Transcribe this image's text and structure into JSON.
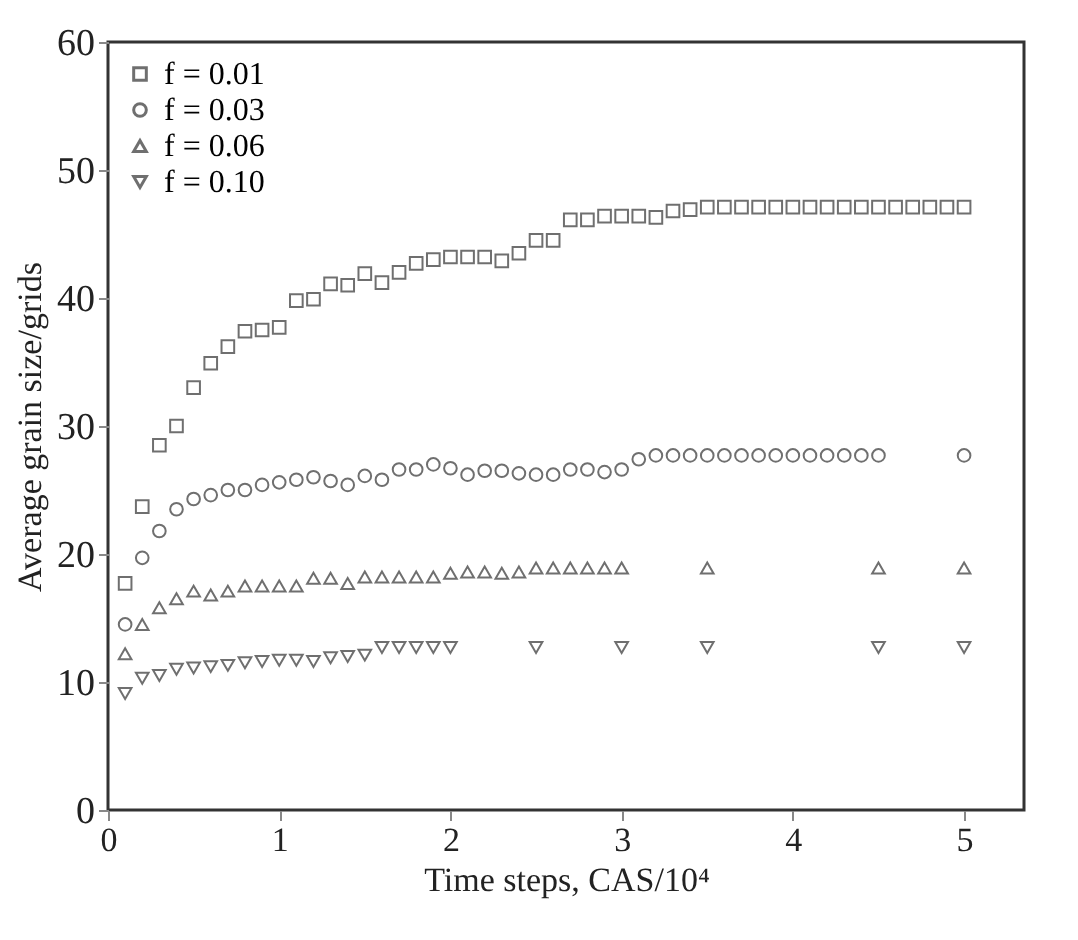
{
  "chart_data": {
    "type": "scatter",
    "xlabel": "Time steps, CAS/10⁴",
    "ylabel": "Average grain size/grids",
    "xlim": [
      0,
      5.35
    ],
    "ylim": [
      0,
      60
    ],
    "xticks": [
      0,
      1,
      2,
      3,
      4,
      5
    ],
    "yticks": [
      0,
      10,
      20,
      30,
      40,
      50,
      60
    ],
    "legend": "top left",
    "grid": false,
    "series": [
      {
        "name": "f = 0.01",
        "color": "#333333",
        "marker": "square",
        "x": [
          0.1,
          0.2,
          0.3,
          0.4,
          0.5,
          0.6,
          0.7,
          0.8,
          0.9,
          1.0,
          1.1,
          1.2,
          1.3,
          1.4,
          1.5,
          1.6,
          1.7,
          1.8,
          1.9,
          2.0,
          2.1,
          2.2,
          2.3,
          2.4,
          2.5,
          2.6,
          2.7,
          2.8,
          2.9,
          3.0,
          3.1,
          3.2,
          3.3,
          3.4,
          3.5,
          3.6,
          3.7,
          3.8,
          3.9,
          4.0,
          4.1,
          4.2,
          4.3,
          4.4,
          4.5,
          4.6,
          4.7,
          4.8,
          4.9,
          5.0
        ],
        "values": [
          17.7,
          23.7,
          28.5,
          30.0,
          33.0,
          34.9,
          36.2,
          37.4,
          37.5,
          37.7,
          39.8,
          39.9,
          41.1,
          41.0,
          41.9,
          41.2,
          42.0,
          42.7,
          43.0,
          43.2,
          43.2,
          43.2,
          42.9,
          43.5,
          44.5,
          44.5,
          46.1,
          46.1,
          46.4,
          46.4,
          46.4,
          46.3,
          46.8,
          46.9,
          47.1,
          47.1,
          47.1,
          47.1,
          47.1,
          47.1,
          47.1,
          47.1,
          47.1,
          47.1,
          47.1,
          47.1,
          47.1,
          47.1,
          47.1,
          47.1
        ]
      },
      {
        "name": "f = 0.03",
        "color": "#333333",
        "marker": "circle",
        "x": [
          0.1,
          0.2,
          0.3,
          0.4,
          0.5,
          0.6,
          0.7,
          0.8,
          0.9,
          1.0,
          1.1,
          1.2,
          1.3,
          1.4,
          1.5,
          1.6,
          1.7,
          1.8,
          1.9,
          2.0,
          2.1,
          2.2,
          2.3,
          2.4,
          2.5,
          2.6,
          2.7,
          2.8,
          2.9,
          3.0,
          3.1,
          3.2,
          3.3,
          3.4,
          3.5,
          3.6,
          3.7,
          3.8,
          3.9,
          4.0,
          4.1,
          4.2,
          4.3,
          4.4,
          4.5,
          5.0
        ],
        "values": [
          14.5,
          19.7,
          21.8,
          23.5,
          24.3,
          24.6,
          25.0,
          25.0,
          25.4,
          25.6,
          25.8,
          26.0,
          25.7,
          25.4,
          26.1,
          25.8,
          26.6,
          26.6,
          27.0,
          26.7,
          26.2,
          26.5,
          26.5,
          26.3,
          26.2,
          26.2,
          26.6,
          26.6,
          26.4,
          26.6,
          27.4,
          27.7,
          27.7,
          27.7,
          27.7,
          27.7,
          27.7,
          27.7,
          27.7,
          27.7,
          27.7,
          27.7,
          27.7,
          27.7,
          27.7,
          27.7
        ]
      },
      {
        "name": "f = 0.06",
        "color": "#333333",
        "marker": "triangle",
        "x": [
          0.1,
          0.2,
          0.3,
          0.4,
          0.5,
          0.6,
          0.7,
          0.8,
          0.9,
          1.0,
          1.1,
          1.2,
          1.3,
          1.4,
          1.5,
          1.6,
          1.7,
          1.8,
          1.9,
          2.0,
          2.1,
          2.2,
          2.3,
          2.4,
          2.5,
          2.6,
          2.7,
          2.8,
          2.9,
          3.0,
          3.5,
          4.5,
          5.0
        ],
        "values": [
          12.2,
          14.5,
          15.8,
          16.5,
          17.1,
          16.8,
          17.1,
          17.5,
          17.5,
          17.5,
          17.5,
          18.1,
          18.1,
          17.7,
          18.2,
          18.2,
          18.2,
          18.2,
          18.2,
          18.5,
          18.6,
          18.6,
          18.5,
          18.6,
          18.9,
          18.9,
          18.9,
          18.9,
          18.9,
          18.9,
          18.9,
          18.9,
          18.9
        ]
      },
      {
        "name": "f = 0.10",
        "color": "#333333",
        "marker": "triangle-down",
        "x": [
          0.1,
          0.2,
          0.3,
          0.4,
          0.5,
          0.6,
          0.7,
          0.8,
          0.9,
          1.0,
          1.1,
          1.2,
          1.3,
          1.4,
          1.5,
          1.6,
          1.7,
          1.8,
          1.9,
          2.0,
          2.5,
          3.0,
          3.5,
          4.5,
          5.0
        ],
        "values": [
          9.1,
          10.3,
          10.5,
          11.0,
          11.1,
          11.2,
          11.3,
          11.5,
          11.6,
          11.7,
          11.7,
          11.6,
          11.9,
          12.0,
          12.1,
          12.7,
          12.7,
          12.7,
          12.7,
          12.7,
          12.7,
          12.7,
          12.7,
          12.7,
          12.7
        ]
      }
    ]
  }
}
